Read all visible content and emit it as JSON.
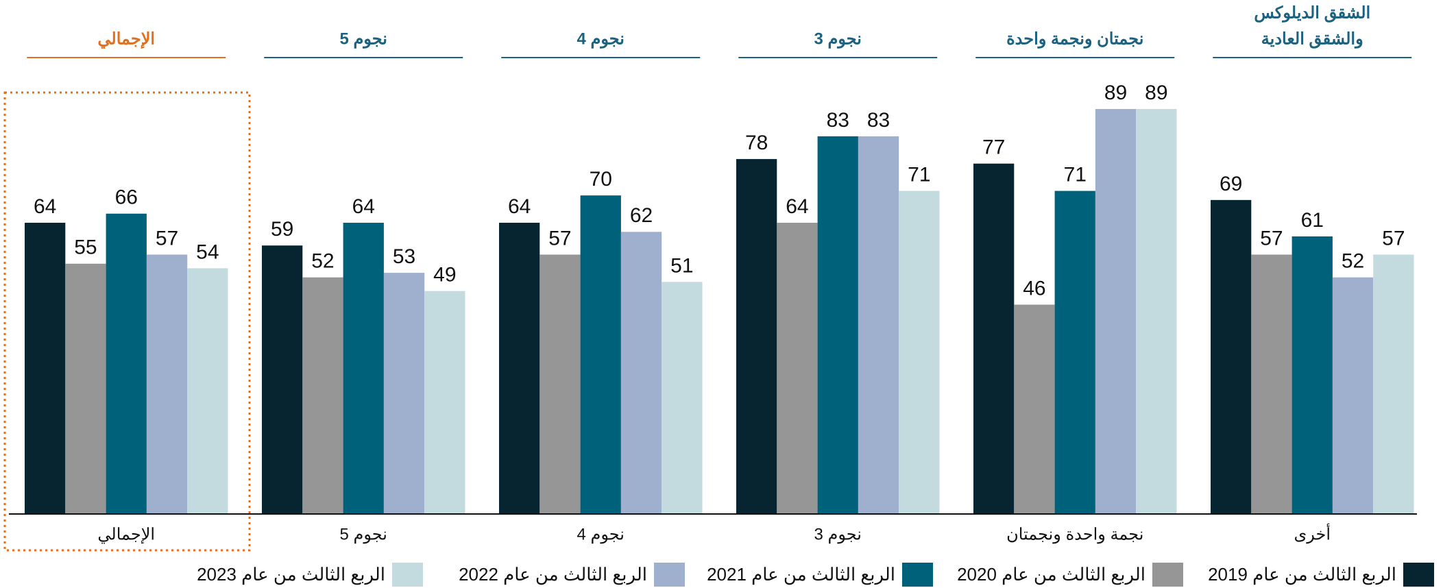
{
  "chart_data": {
    "type": "bar",
    "headers": [
      [
        "الإجمالي"
      ],
      [
        "5 نجوم"
      ],
      [
        "4 نجوم"
      ],
      [
        "3 نجوم"
      ],
      [
        "نجمتان ونجمة واحدة"
      ],
      [
        "الشقق الديلوكس",
        "والشقق العادية"
      ]
    ],
    "header_colors": [
      "#e0701f",
      "#1b6280",
      "#1b6280",
      "#1b6280",
      "#1b6280",
      "#1b6280"
    ],
    "categories": [
      "الإجمالي",
      "5 نجوم",
      "4 نجوم",
      "3 نجوم",
      "نجمة واحدة ونجمتان",
      "أخرى"
    ],
    "series": [
      {
        "name": "الربع الثالث من عام 2019",
        "color": "#062530",
        "values": [
          64,
          59,
          64,
          78,
          77,
          69
        ]
      },
      {
        "name": "الربع الثالث من عام 2020",
        "color": "#969696",
        "values": [
          55,
          52,
          57,
          64,
          46,
          57
        ]
      },
      {
        "name": "الربع الثالث من عام 2021",
        "color": "#00617a",
        "values": [
          66,
          64,
          70,
          83,
          71,
          61
        ]
      },
      {
        "name": "الربع الثالث من عام 2022",
        "color": "#9fb0ce",
        "values": [
          57,
          53,
          62,
          83,
          89,
          52
        ]
      },
      {
        "name": "الربع الثالث من عام 2023",
        "color": "#c3dbdf",
        "values": [
          54,
          49,
          51,
          71,
          89,
          57
        ]
      }
    ],
    "ylim": [
      0,
      100
    ],
    "highlight_color": "#e0701f"
  }
}
